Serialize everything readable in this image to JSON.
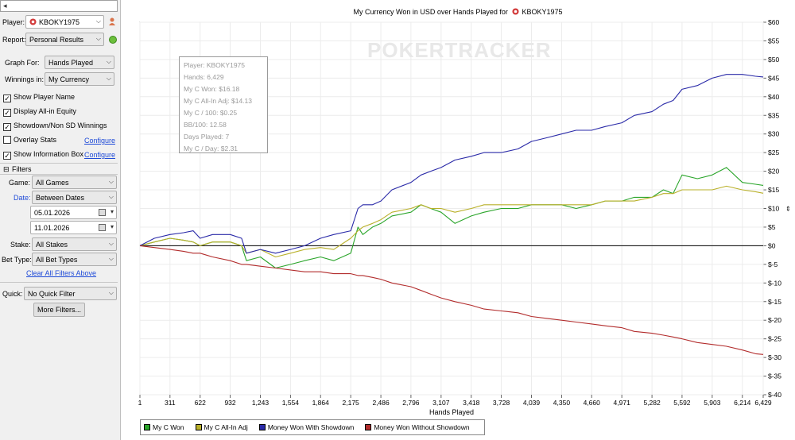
{
  "left_panel": {
    "player_label": "Player:",
    "player_value": "KBOKY1975",
    "report_label": "Report:",
    "report_value": "Personal Results",
    "graph_for_label": "Graph For:",
    "graph_for_value": "Hands Played",
    "winnings_in_label": "Winnings in:",
    "winnings_in_value": "My Currency",
    "checkboxes": [
      {
        "label": "Show Player Name",
        "checked": true
      },
      {
        "label": "Display All-in Equity",
        "checked": true
      },
      {
        "label": "Showdown/Non SD Winnings",
        "checked": true
      },
      {
        "label": "Overlay Stats",
        "checked": false
      },
      {
        "label": "Show Information Box",
        "checked": true
      }
    ],
    "configure_label": "Configure",
    "filters_label": "Filters",
    "game_label": "Game:",
    "game_value": "All Games",
    "date_label": "Date:",
    "date_value": "Between Dates",
    "date_from": "05.01.2026",
    "date_to": "11.01.2026",
    "stake_label": "Stake:",
    "stake_value": "All Stakes",
    "bet_type_label": "Bet Type:",
    "bet_type_value": "All Bet Types",
    "clear_filters_label": "Clear All Filters Above",
    "quick_label": "Quick:",
    "quick_value": "No Quick Filter",
    "more_filters_label": "More Filters..."
  },
  "chart": {
    "title": "My Currency Won in USD over Hands Played for",
    "title_player": "KBOKY1975",
    "watermark": "POKERTRACKER",
    "info_box": [
      "Player: KBOKY1975",
      "Hands: 6,429",
      "My C Won: $16.18",
      "My C All-In Adj: $14.13",
      "My C / 100: $0.25",
      "BB/100: 12.58",
      "Days Played: 7",
      "My C / Day: $2.31"
    ]
  },
  "chart_data": {
    "type": "line",
    "xlabel": "Hands Played",
    "x_ticks": [
      "1",
      "311",
      "622",
      "932",
      "1,243",
      "1,554",
      "1,864",
      "2,175",
      "2,486",
      "2,796",
      "3,107",
      "3,418",
      "3,728",
      "4,039",
      "4,350",
      "4,660",
      "4,971",
      "5,282",
      "5,592",
      "5,903",
      "6,214",
      "6,429"
    ],
    "y_ticks": [
      "$60",
      "$55",
      "$50",
      "$45",
      "$40",
      "$35",
      "$30",
      "$25",
      "$20",
      "$15",
      "$10",
      "$5",
      "$0",
      "$-5",
      "$-10",
      "$-15",
      "$-20",
      "$-25",
      "$-30",
      "$-35",
      "$-40"
    ],
    "xlim": [
      1,
      6429
    ],
    "ylim": [
      -40,
      60
    ],
    "grid": true,
    "legend_position": "bottom",
    "x": [
      1,
      150,
      311,
      450,
      550,
      622,
      750,
      932,
      1050,
      1100,
      1243,
      1400,
      1554,
      1700,
      1864,
      2000,
      2175,
      2250,
      2300,
      2400,
      2486,
      2600,
      2796,
      2900,
      3000,
      3107,
      3250,
      3418,
      3550,
      3728,
      3900,
      4039,
      4200,
      4350,
      4500,
      4660,
      4800,
      4971,
      5100,
      5282,
      5400,
      5500,
      5592,
      5750,
      5903,
      6050,
      6214,
      6350,
      6429
    ],
    "series": [
      {
        "name": "My C Won",
        "color": "#2aa52a",
        "values": [
          0,
          1,
          2,
          1.5,
          1,
          0,
          1,
          1,
          0,
          -4,
          -3,
          -6,
          -5,
          -4,
          -3,
          -4,
          -2,
          5,
          3,
          5,
          6,
          8,
          9,
          11,
          10,
          9,
          6,
          8,
          9,
          10,
          10,
          11,
          11,
          11,
          10,
          11,
          12,
          12,
          13,
          13,
          15,
          14,
          19,
          18,
          19,
          21,
          17,
          16.5,
          16.2
        ]
      },
      {
        "name": "My C All-In Adj",
        "color": "#b9b02a",
        "values": [
          0,
          1,
          2,
          1.5,
          1,
          0,
          1,
          1,
          0,
          -2,
          -1,
          -3,
          -2,
          -1,
          -0.5,
          -1,
          2,
          4,
          5,
          6,
          7,
          9,
          10,
          11,
          10,
          10,
          9,
          10,
          11,
          11,
          11,
          11,
          11,
          11,
          11,
          11,
          12,
          12,
          12,
          13,
          14,
          14,
          15,
          15,
          15,
          16,
          15,
          14.5,
          14.1
        ]
      },
      {
        "name": "Money Won With Showdown",
        "color": "#2a2aa8",
        "values": [
          0,
          2,
          3,
          3.5,
          4,
          2,
          3,
          3,
          2,
          -2,
          -1,
          -2,
          -1,
          0,
          2,
          3,
          4,
          10,
          11,
          11,
          12,
          15,
          17,
          19,
          20,
          21,
          23,
          24,
          25,
          25,
          26,
          28,
          29,
          30,
          31,
          31,
          32,
          33,
          35,
          36,
          38,
          39,
          42,
          43,
          45,
          46,
          46,
          45.5,
          45.3
        ]
      },
      {
        "name": "Money Won Without Showdown",
        "color": "#b22c2c",
        "values": [
          0,
          -0.5,
          -1,
          -1.5,
          -2,
          -2,
          -3,
          -4,
          -5,
          -5,
          -5.5,
          -6,
          -6.5,
          -7,
          -7,
          -7.5,
          -7.5,
          -8,
          -8,
          -8.5,
          -9,
          -10,
          -11,
          -12,
          -13,
          -14,
          -15,
          -16,
          -17,
          -17.5,
          -18,
          -19,
          -19.5,
          -20,
          -20.5,
          -21,
          -21.5,
          -22,
          -23,
          -23.5,
          -24,
          -24.5,
          -25,
          -26,
          -26.5,
          -27,
          -28,
          -29,
          -29.2
        ]
      }
    ]
  }
}
